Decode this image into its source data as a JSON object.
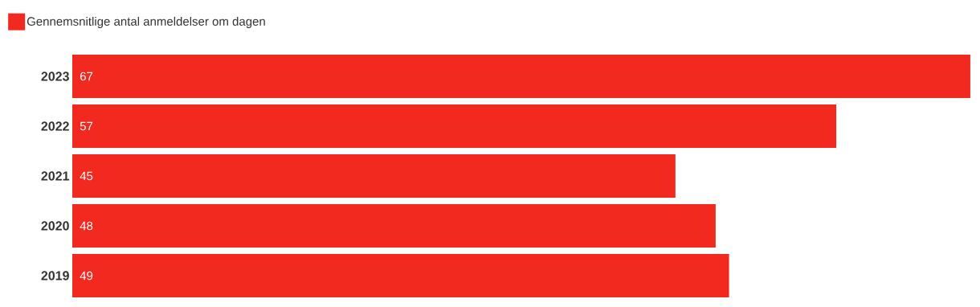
{
  "chart_data": {
    "type": "bar",
    "orientation": "horizontal",
    "categories": [
      "2023",
      "2022",
      "2021",
      "2020",
      "2019"
    ],
    "series": [
      {
        "name": "Gennemsnitlige antal anmeldelser om dagen",
        "color": "#f2291f",
        "values": [
          67,
          57,
          45,
          48,
          49
        ]
      }
    ],
    "data_labels": true,
    "legend": "top left",
    "xlim": [
      0,
      67
    ]
  }
}
